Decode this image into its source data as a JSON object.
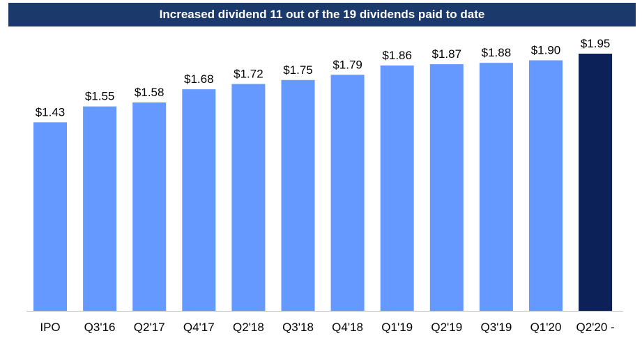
{
  "chart_data": {
    "type": "bar",
    "title": "Increased dividend 11 out of the 19 dividends paid to date",
    "categories": [
      "IPO",
      "Q3'16",
      "Q2'17",
      "Q4'17",
      "Q2'18",
      "Q3'18",
      "Q4'18",
      "Q1'19",
      "Q2'19",
      "Q3'19",
      "Q1'20",
      "Q2'20 -"
    ],
    "values": [
      1.43,
      1.55,
      1.58,
      1.68,
      1.72,
      1.75,
      1.79,
      1.86,
      1.87,
      1.88,
      1.9,
      1.95
    ],
    "data_labels": [
      "$1.43",
      "$1.55",
      "$1.58",
      "$1.68",
      "$1.72",
      "$1.75",
      "$1.79",
      "$1.86",
      "$1.87",
      "$1.88",
      "$1.90",
      "$1.95"
    ],
    "xlabel": "",
    "ylabel": "",
    "ylim": [
      0,
      1.95
    ],
    "grid": false,
    "colors": {
      "bar": "#6699ff",
      "highlight_bar": "#0b2157",
      "banner": "#1b3a6b",
      "axis": "#bfbfbf"
    },
    "highlight_index": 11
  }
}
